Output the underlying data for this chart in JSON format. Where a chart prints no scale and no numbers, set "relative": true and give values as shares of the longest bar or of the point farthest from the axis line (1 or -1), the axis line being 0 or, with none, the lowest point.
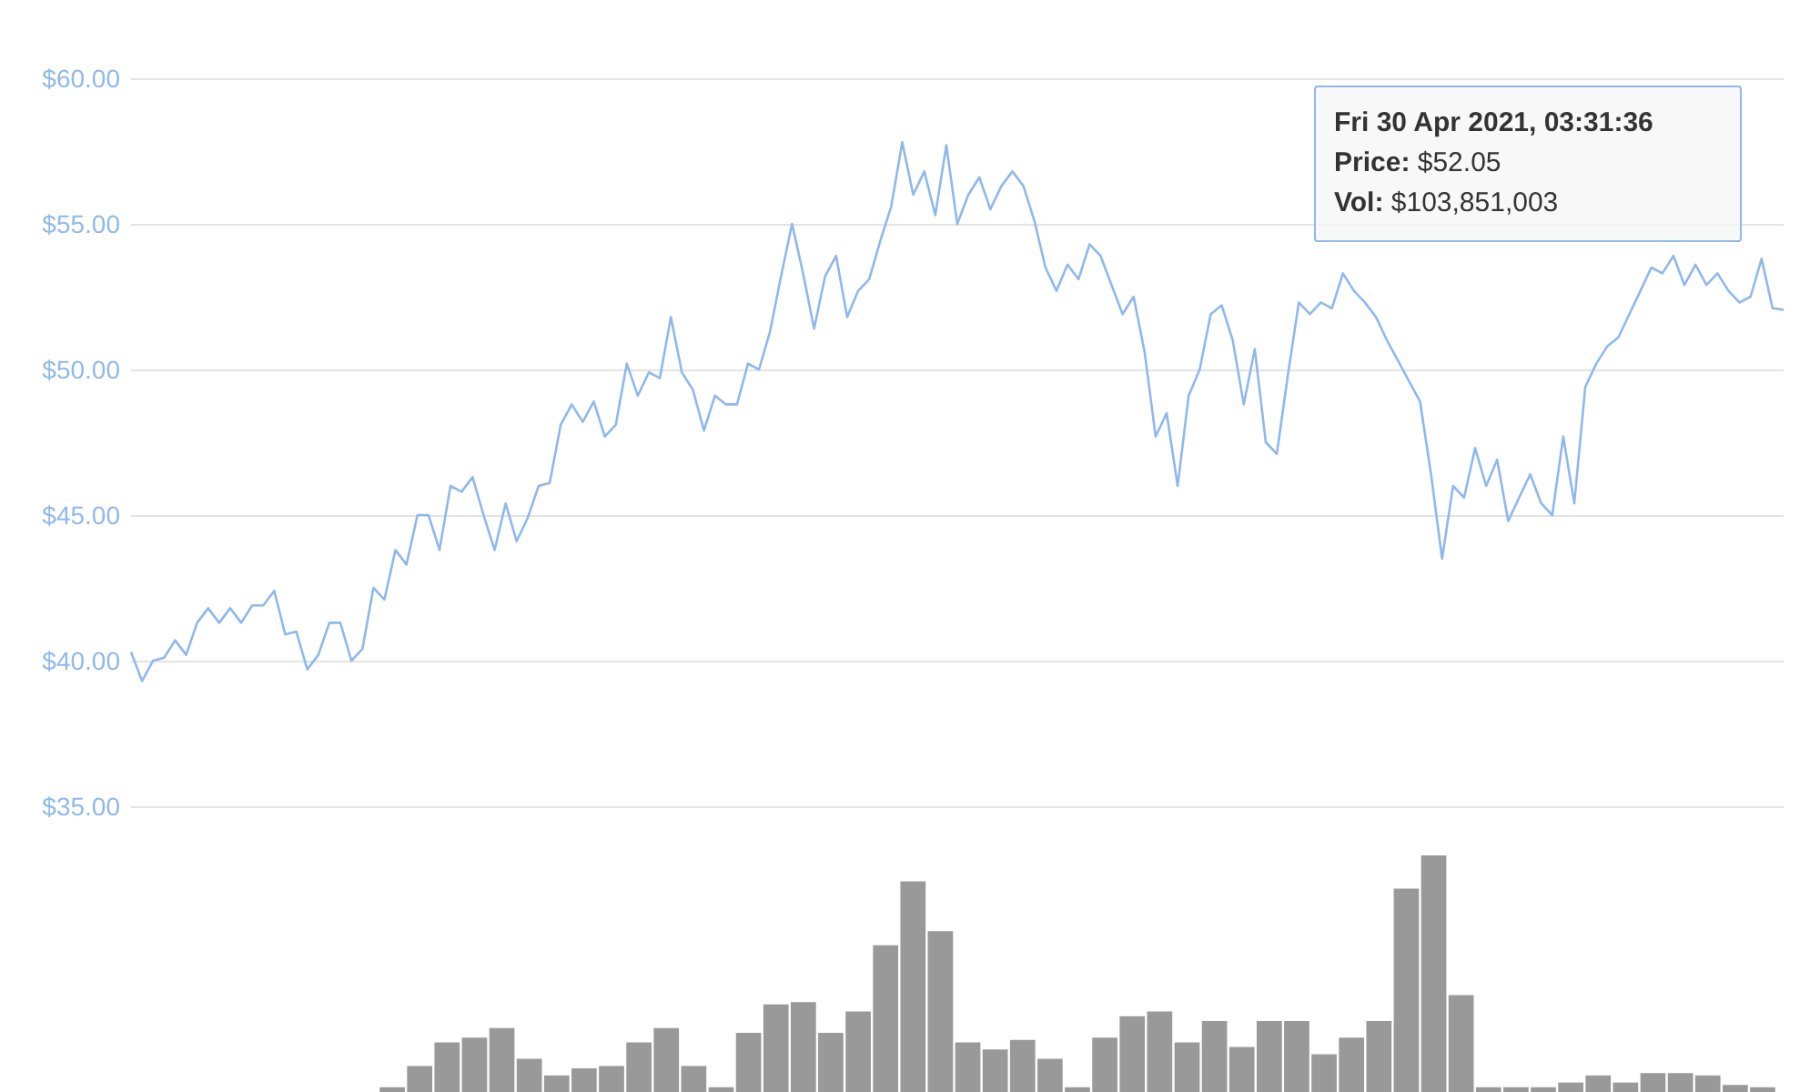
{
  "chart_data": [
    {
      "type": "line",
      "categories": [
        null,
        null,
        null,
        null,
        null,
        null,
        null,
        null,
        null,
        null,
        null,
        null,
        null,
        null,
        null,
        null,
        null,
        null,
        null,
        null,
        null,
        null,
        null,
        null,
        null,
        null,
        null,
        null,
        null,
        null,
        null,
        null,
        null,
        null,
        null,
        null,
        null,
        null,
        null,
        null,
        null,
        null,
        null,
        null,
        null,
        null,
        null,
        null,
        null,
        null,
        null,
        null,
        null,
        null,
        null,
        null,
        null,
        null,
        null,
        null,
        null,
        null,
        null,
        null,
        null,
        null,
        null,
        null,
        null,
        null,
        null,
        null,
        null,
        null,
        null,
        null,
        null,
        null,
        null,
        null,
        null,
        null,
        null,
        null,
        null,
        null,
        null,
        null,
        null,
        null,
        null,
        null,
        null,
        null,
        null,
        null,
        null,
        null,
        null,
        null,
        null,
        null,
        null,
        null,
        null,
        null,
        null,
        null,
        null,
        null,
        null,
        null,
        null,
        null,
        null,
        null,
        null,
        null,
        null,
        null,
        null,
        null,
        null,
        null,
        null,
        null,
        null,
        null,
        null,
        null,
        null,
        null,
        null,
        null,
        null,
        null,
        null,
        null,
        null,
        null,
        null,
        null,
        null,
        null,
        null,
        null,
        null,
        null,
        null,
        null,
        null
      ],
      "series": [
        {
          "color": "#8fb8ec",
          "values": [
            40.3,
            39.3,
            40.0,
            40.1,
            40.7,
            40.2,
            41.3,
            41.8,
            41.3,
            41.8,
            41.3,
            41.9,
            41.9,
            42.4,
            40.9,
            41.0,
            39.7,
            40.2,
            41.3,
            41.3,
            40.0,
            40.4,
            42.5,
            42.1,
            43.8,
            43.3,
            45.0,
            45.0,
            43.8,
            46.0,
            45.8,
            46.3,
            45.0,
            43.8,
            45.4,
            44.1,
            44.9,
            46.0,
            46.1,
            48.1,
            48.8,
            48.2,
            48.9,
            47.7,
            48.1,
            50.2,
            49.1,
            49.9,
            49.7,
            51.8,
            49.9,
            49.3,
            47.9,
            49.1,
            48.8,
            48.8,
            50.2,
            50.0,
            51.3,
            53.2,
            55.0,
            53.3,
            51.4,
            53.2,
            53.9,
            51.8,
            52.7,
            53.1,
            54.4,
            55.6,
            57.8,
            56.0,
            56.8,
            55.3,
            57.7,
            55.0,
            56.0,
            56.6,
            55.5,
            56.3,
            56.8,
            56.3,
            55.1,
            53.5,
            52.7,
            53.6,
            53.1,
            54.3,
            53.9,
            52.9,
            51.9,
            52.5,
            50.6,
            47.7,
            48.5,
            46.0,
            49.1,
            50.0,
            51.9,
            52.2,
            51.0,
            48.8,
            50.7,
            47.5,
            47.1,
            49.8,
            52.3,
            51.9,
            52.3,
            52.1,
            53.3,
            52.7,
            52.3,
            51.8,
            51.0,
            50.3,
            49.6,
            48.9,
            46.4,
            43.5,
            46.0,
            45.6,
            47.3,
            46.0,
            46.9,
            44.8,
            45.6,
            46.4,
            45.4,
            45.0,
            47.7,
            45.4,
            49.4,
            50.2,
            50.8,
            51.1,
            51.9,
            52.7,
            53.5,
            53.3,
            53.9,
            52.9,
            53.6,
            52.9,
            53.3,
            52.7,
            52.3,
            52.5,
            53.8,
            52.1,
            52.05
          ]
        }
      ],
      "ylim": [
        35,
        60
      ],
      "yticks": [
        {
          "value": 35,
          "label": "$35.00"
        },
        {
          "value": 40,
          "label": "$40.00"
        },
        {
          "value": 45,
          "label": "$45.00"
        },
        {
          "value": 50,
          "label": "$50.00"
        },
        {
          "value": 55,
          "label": "$55.00"
        },
        {
          "value": 60,
          "label": "$60.00"
        }
      ],
      "grid": "y",
      "marker": "none",
      "annotations": [
        "Fri 30 Apr 2021, 03:31:36",
        "Price: $52.05",
        "Vol: $103,851,003"
      ]
    },
    {
      "type": "bar",
      "relative": true,
      "categories": [
        null,
        null,
        null,
        null,
        null,
        null,
        null,
        null,
        null,
        null,
        null,
        null,
        null,
        null,
        null,
        null,
        null,
        null,
        null,
        null,
        null,
        null,
        null,
        null,
        null,
        null,
        null,
        null,
        null,
        null,
        null,
        null,
        null,
        null,
        null,
        null,
        null,
        null,
        null,
        null,
        null,
        null,
        null,
        null,
        null,
        null,
        null,
        null,
        null,
        null,
        null
      ],
      "series": [
        {
          "color": "#999999",
          "values": [
            0.02,
            0.11,
            0.21,
            0.23,
            0.27,
            0.14,
            0.07,
            0.1,
            0.11,
            0.21,
            0.27,
            0.11,
            0.02,
            0.25,
            0.37,
            0.38,
            0.25,
            0.34,
            0.62,
            0.89,
            0.68,
            0.21,
            0.18,
            0.22,
            0.14,
            0.02,
            0.23,
            0.32,
            0.34,
            0.21,
            0.3,
            0.19,
            0.3,
            0.3,
            0.16,
            0.23,
            0.3,
            0.86,
            1,
            0.41,
            0.02,
            0.02,
            0.02,
            0.04,
            0.07,
            0.04,
            0.08,
            0.08,
            0.07,
            0.03,
            0.02
          ]
        }
      ],
      "grid": false
    }
  ]
}
